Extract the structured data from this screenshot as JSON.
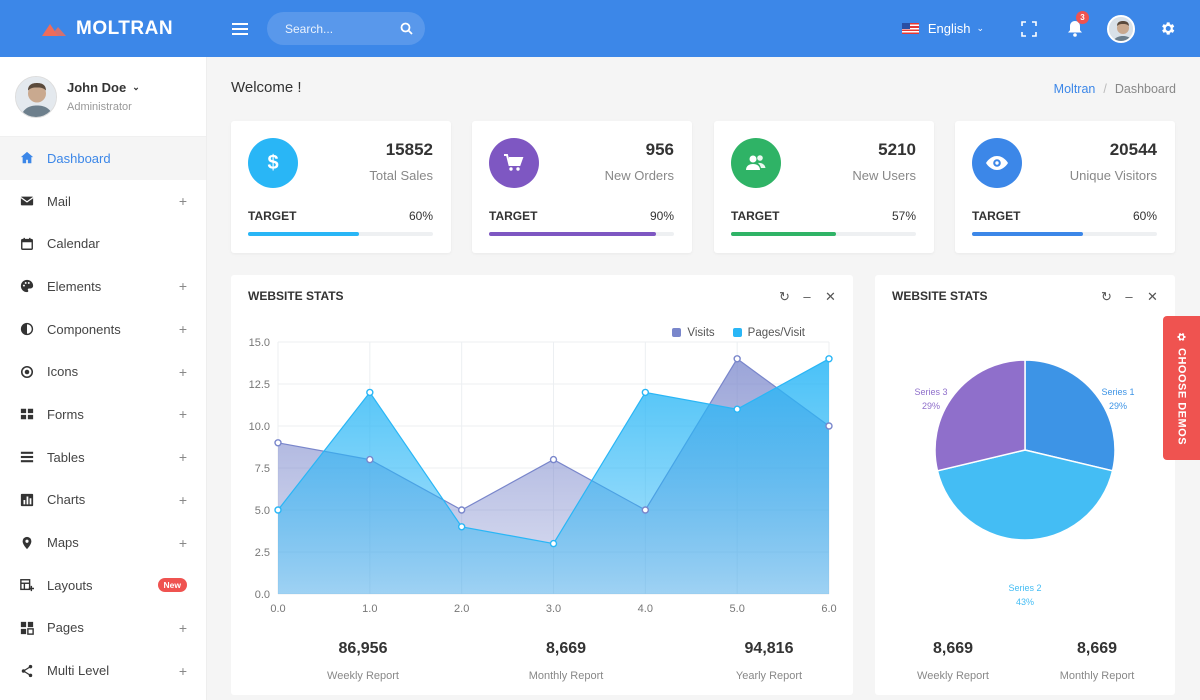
{
  "brand": "MOLTRAN",
  "search": {
    "placeholder": "Search..."
  },
  "topbar": {
    "language": "English",
    "notifications": "3"
  },
  "user": {
    "name": "John Doe",
    "role": "Administrator"
  },
  "nav": [
    {
      "label": "Dashboard",
      "icon": "home-icon",
      "plus": "",
      "badge": ""
    },
    {
      "label": "Mail",
      "icon": "mail-icon",
      "plus": "+",
      "badge": ""
    },
    {
      "label": "Calendar",
      "icon": "calendar-icon",
      "plus": "",
      "badge": ""
    },
    {
      "label": "Elements",
      "icon": "palette-icon",
      "plus": "+",
      "badge": ""
    },
    {
      "label": "Components",
      "icon": "contrast-icon",
      "plus": "+",
      "badge": ""
    },
    {
      "label": "Icons",
      "icon": "icons-icon",
      "plus": "+",
      "badge": ""
    },
    {
      "label": "Forms",
      "icon": "forms-icon",
      "plus": "+",
      "badge": ""
    },
    {
      "label": "Tables",
      "icon": "tables-icon",
      "plus": "+",
      "badge": ""
    },
    {
      "label": "Charts",
      "icon": "charts-icon",
      "plus": "+",
      "badge": ""
    },
    {
      "label": "Maps",
      "icon": "map-pin-icon",
      "plus": "+",
      "badge": ""
    },
    {
      "label": "Layouts",
      "icon": "layouts-icon",
      "plus": "",
      "badge": "New"
    },
    {
      "label": "Pages",
      "icon": "pages-icon",
      "plus": "+",
      "badge": ""
    },
    {
      "label": "Multi Level",
      "icon": "share-icon",
      "plus": "+",
      "badge": ""
    }
  ],
  "page": {
    "welcome": "Welcome !",
    "breadcrumb_root": "Moltran",
    "breadcrumb_sep": "/",
    "breadcrumb_current": "Dashboard"
  },
  "stats": [
    {
      "value": "15852",
      "label": "Total Sales",
      "target": "TARGET",
      "percent": "60%",
      "progress": 0.6,
      "color": "#29b6f6",
      "icon": "dollar-icon"
    },
    {
      "value": "956",
      "label": "New Orders",
      "target": "TARGET",
      "percent": "90%",
      "progress": 0.9,
      "color": "#7e57c2",
      "icon": "cart-icon"
    },
    {
      "value": "5210",
      "label": "New Users",
      "target": "TARGET",
      "percent": "57%",
      "progress": 0.57,
      "color": "#2fb366",
      "icon": "users-icon"
    },
    {
      "value": "20544",
      "label": "Unique Visitors",
      "target": "TARGET",
      "percent": "60%",
      "progress": 0.6,
      "color": "#3c87e8",
      "icon": "eye-icon"
    }
  ],
  "panels": {
    "left": {
      "title": "WEBSITE STATS",
      "reports": [
        {
          "value": "86,956",
          "label": "Weekly Report"
        },
        {
          "value": "8,669",
          "label": "Monthly Report"
        },
        {
          "value": "94,816",
          "label": "Yearly Report"
        }
      ]
    },
    "right": {
      "title": "WEBSITE STATS",
      "reports": [
        {
          "value": "8,669",
          "label": "Weekly Report"
        },
        {
          "value": "8,669",
          "label": "Monthly Report"
        }
      ]
    }
  },
  "demos_tab": "CHOOSE DEMOS",
  "colors": {
    "primary": "#3c87e8",
    "visits": "#7986cb",
    "pages_visit": "#29b6f6",
    "danger": "#ef5350"
  },
  "chart_data": [
    {
      "type": "area",
      "x": [
        0,
        1,
        2,
        3,
        4,
        5,
        6
      ],
      "xticks": [
        "0.0",
        "1.0",
        "2.0",
        "3.0",
        "4.0",
        "5.0",
        "6.0"
      ],
      "yticks": [
        "0.0",
        "2.5",
        "5.0",
        "7.5",
        "10.0",
        "12.5",
        "15.0"
      ],
      "ylim": [
        0,
        15
      ],
      "xlim": [
        0,
        6
      ],
      "series": [
        {
          "name": "Visits",
          "values": [
            9,
            8,
            5,
            8,
            5,
            14,
            10
          ],
          "color": "#7986cb"
        },
        {
          "name": "Pages/Visit",
          "values": [
            5,
            12,
            4,
            3,
            12,
            11,
            14
          ],
          "color": "#29b6f6"
        }
      ],
      "legend": "top-right",
      "grid": true
    },
    {
      "type": "pie",
      "slices": [
        {
          "name": "Series 1",
          "label": "29%",
          "value": 29,
          "color": "#3d94e6"
        },
        {
          "name": "Series 2",
          "label": "43%",
          "value": 43,
          "color": "#44bdf4"
        },
        {
          "name": "Series 3",
          "label": "29%",
          "value": 29,
          "color": "#8f6fcb"
        }
      ]
    }
  ]
}
